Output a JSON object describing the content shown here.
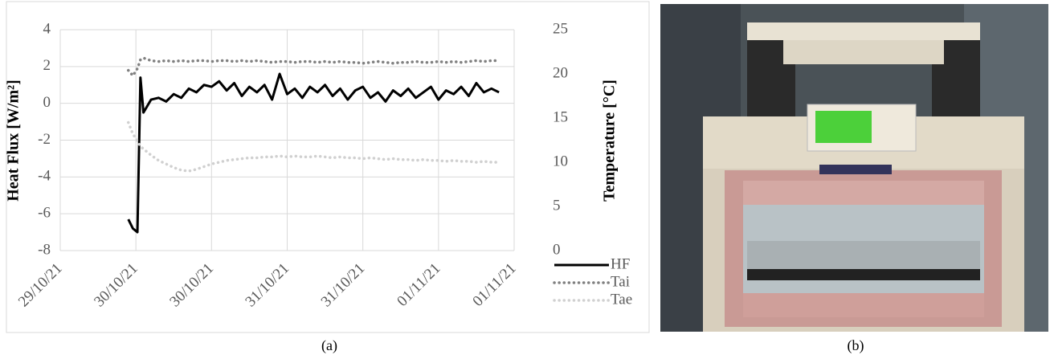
{
  "chart_data": {
    "type": "line",
    "y_label": "Heat Flux [W/m²]",
    "y2_label": "Temperature [°C]",
    "x": [
      44498.45,
      44498.48,
      44498.51,
      44498.53,
      44498.55,
      44498.6,
      44498.65,
      44498.7,
      44498.75,
      44498.8,
      44498.85,
      44498.9,
      44498.95,
      44499.0,
      44499.05,
      44499.1,
      44499.15,
      44499.2,
      44499.25,
      44499.3,
      44499.35,
      44499.4,
      44499.45,
      44499.5,
      44499.55,
      44499.6,
      44499.65,
      44499.7,
      44499.75,
      44499.8,
      44499.85,
      44499.9,
      44499.95,
      44500.0,
      44500.05,
      44500.1,
      44500.15,
      44500.2,
      44500.25,
      44500.3,
      44500.35,
      44500.4,
      44500.45,
      44500.5,
      44500.55,
      44500.6,
      44500.65,
      44500.7,
      44500.75,
      44500.8,
      44500.85,
      44500.9
    ],
    "series": [
      {
        "name": "HF",
        "color": "#000000",
        "style": "solid",
        "values": [
          -6.3,
          -6.8,
          -7.0,
          1.4,
          -0.5,
          0.2,
          0.3,
          0.1,
          0.5,
          0.3,
          0.8,
          0.6,
          1.0,
          0.9,
          1.2,
          0.7,
          1.1,
          0.4,
          0.9,
          0.6,
          1.0,
          0.2,
          1.6,
          0.5,
          0.8,
          0.3,
          0.9,
          0.6,
          1.0,
          0.4,
          0.8,
          0.2,
          0.7,
          0.9,
          0.3,
          0.6,
          0.1,
          0.7,
          0.4,
          0.8,
          0.3,
          0.6,
          0.9,
          0.2,
          0.7,
          0.5,
          0.9,
          0.4,
          1.1,
          0.6,
          0.8,
          0.6
        ]
      },
      {
        "name": "Tai",
        "color": "#808080",
        "style": "dotted",
        "axis": "y2",
        "values": [
          20.4,
          19.8,
          20.6,
          21.6,
          21.8,
          21.5,
          21.4,
          21.5,
          21.4,
          21.5,
          21.4,
          21.5,
          21.5,
          21.4,
          21.5,
          21.5,
          21.4,
          21.5,
          21.4,
          21.5,
          21.4,
          21.3,
          21.4,
          21.4,
          21.3,
          21.4,
          21.4,
          21.3,
          21.4,
          21.3,
          21.4,
          21.3,
          21.3,
          21.2,
          21.3,
          21.4,
          21.3,
          21.2,
          21.3,
          21.3,
          21.4,
          21.3,
          21.3,
          21.4,
          21.3,
          21.4,
          21.3,
          21.4,
          21.5,
          21.4,
          21.5,
          21.5
        ]
      },
      {
        "name": "Tae",
        "color": "#d0d0d0",
        "style": "dotted",
        "axis": "y2",
        "values": [
          14.5,
          13.2,
          12.4,
          11.8,
          11.5,
          10.8,
          10.2,
          9.8,
          9.4,
          9.1,
          9.0,
          9.2,
          9.5,
          9.8,
          10.0,
          10.2,
          10.3,
          10.4,
          10.5,
          10.5,
          10.6,
          10.6,
          10.7,
          10.6,
          10.7,
          10.6,
          10.6,
          10.7,
          10.6,
          10.5,
          10.6,
          10.5,
          10.5,
          10.4,
          10.5,
          10.4,
          10.3,
          10.4,
          10.3,
          10.3,
          10.2,
          10.3,
          10.2,
          10.2,
          10.1,
          10.2,
          10.1,
          10.1,
          10.0,
          10.1,
          10.0,
          10.0
        ]
      }
    ],
    "xlim": [
      44498,
      44501
    ],
    "xticks": [
      {
        "value": 44498,
        "label": "29/10/21"
      },
      {
        "value": 44498.5,
        "label": "30/10/21"
      },
      {
        "value": 44499,
        "label": "30/10/21"
      },
      {
        "value": 44499.5,
        "label": "31/10/21"
      },
      {
        "value": 44500,
        "label": "31/10/21"
      },
      {
        "value": 44500.5,
        "label": "01/11/21"
      },
      {
        "value": 44501,
        "label": "01/11/21"
      }
    ],
    "ylim": [
      -8,
      4
    ],
    "yticks": [
      -8,
      -6,
      -4,
      -2,
      0,
      2,
      4
    ],
    "y2lim": [
      0,
      25
    ],
    "y2ticks": [
      0,
      5,
      10,
      15,
      20,
      25
    ],
    "grid": true,
    "legend": "bottom-right"
  },
  "captions": [
    "(a)",
    "(b)"
  ]
}
